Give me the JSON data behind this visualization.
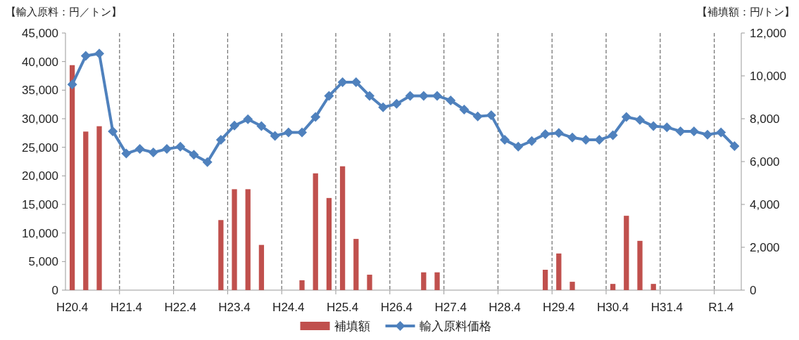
{
  "chart_data": {
    "type": "bar",
    "ylabel": "【輸入原料：円／トン】",
    "y2label": "【補填額：円/トン】",
    "categories": [
      "H20.4",
      null,
      null,
      null,
      "H21.4",
      null,
      null,
      null,
      "H22.4",
      null,
      null,
      null,
      "H23.4",
      null,
      null,
      null,
      "H24.4",
      null,
      null,
      null,
      "H25.4",
      null,
      null,
      null,
      "H26.4",
      null,
      null,
      null,
      "H27.4",
      null,
      null,
      null,
      "H28.4",
      null,
      null,
      null,
      "H29.4",
      null,
      null,
      null,
      "H30.4",
      null,
      null,
      null,
      "H31.4",
      null,
      null,
      null,
      "R1.4",
      null
    ],
    "series": [
      {
        "name": "補填額",
        "axis": "y2",
        "color": "#c0504d",
        "values": [
          10500,
          7400,
          7650,
          null,
          null,
          null,
          null,
          null,
          null,
          null,
          null,
          3270,
          4710,
          4710,
          2110,
          null,
          null,
          460,
          5450,
          4300,
          5780,
          2390,
          720,
          null,
          null,
          null,
          830,
          830,
          null,
          null,
          null,
          null,
          null,
          null,
          null,
          950,
          1710,
          390,
          null,
          null,
          290,
          3470,
          2300,
          290,
          null,
          null,
          null,
          null,
          null,
          null
        ]
      },
      {
        "name": "輸入原料価格",
        "type": "line",
        "color": "#4f81bd",
        "marker": "diamond",
        "values": [
          36000,
          41000,
          41400,
          27800,
          23900,
          24700,
          24100,
          24700,
          25100,
          23700,
          22400,
          26300,
          28800,
          29900,
          28700,
          27000,
          27600,
          27600,
          30300,
          34000,
          36400,
          36400,
          34000,
          32000,
          32600,
          34000,
          34000,
          34000,
          33200,
          31600,
          30400,
          30600,
          26300,
          25100,
          26100,
          27300,
          27500,
          26700,
          26300,
          26300,
          27100,
          30300,
          29800,
          28700,
          28500,
          27800,
          27800,
          27200,
          27600,
          25200
        ]
      }
    ],
    "ylim": [
      0,
      45000
    ],
    "yticks": [
      {
        "value": 0,
        "label": "0"
      },
      {
        "value": 5000,
        "label": "5,000"
      },
      {
        "value": 10000,
        "label": "10,000"
      },
      {
        "value": 15000,
        "label": "15,000"
      },
      {
        "value": 20000,
        "label": "20,000"
      },
      {
        "value": 25000,
        "label": "25,000"
      },
      {
        "value": 30000,
        "label": "30,000"
      },
      {
        "value": 35000,
        "label": "35,000"
      },
      {
        "value": 40000,
        "label": "40,000"
      },
      {
        "value": 45000,
        "label": "45,000"
      }
    ],
    "y2lim": [
      0,
      12000
    ],
    "y2ticks": [
      {
        "value": 0,
        "label": "0"
      },
      {
        "value": 2000,
        "label": "2,000"
      },
      {
        "value": 4000,
        "label": "4,000"
      },
      {
        "value": 6000,
        "label": "6,000"
      },
      {
        "value": 8000,
        "label": "8,000"
      },
      {
        "value": 10000,
        "label": "10,000"
      },
      {
        "value": 12000,
        "label": "12,000"
      }
    ],
    "grid": "x",
    "legend": "bottom"
  }
}
